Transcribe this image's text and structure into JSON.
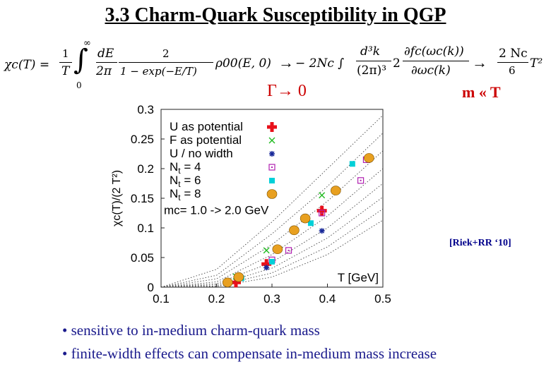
{
  "slide": {
    "title": "3.3 Charm-Quark Susceptibility  in QGP",
    "formula": {
      "lhs": "χc(T) =",
      "frac1_num": "1",
      "frac1_den": "T",
      "int_upper": "∞",
      "int_lower": "0",
      "frac2_num": "dE",
      "frac2_den": "2π",
      "frac3_num": "2",
      "frac3_den": "1 − exp(−E/T)",
      "rho": "ρ00(E, 0)",
      "arrow1": "→",
      "mid": "− 2Nc ∫",
      "frac4_num": "d³k",
      "frac4_den": "(2π)³",
      "two": "2",
      "frac5_num": "∂fc(ωc(k))",
      "frac5_den": "∂ωc(k)",
      "arrow2": "→",
      "frac6_num": "2 Nc",
      "frac6_den": "6",
      "t_pow": "T²"
    },
    "gamma_limit": "Γ→ 0",
    "mass_limit": "m « T",
    "citation": "[Riek+RR ‘10]",
    "bullets": [
      "• sensitive to in-medium charm-quark mass",
      "• finite-width effects can compensate in-medium mass increase"
    ]
  },
  "colors": {
    "red": "#e8101a",
    "green": "#22bb22",
    "blue": "#1a2a9a",
    "magenta": "#b020b0",
    "cyan": "#00d0d8",
    "orange": "#e8a020",
    "accent": "#cc0000",
    "bullet": "#1a1a8c"
  },
  "chart_data": {
    "type": "scatter",
    "xlabel": "T [GeV]",
    "ylabel": "χc(T)/(2 T²)",
    "xlim": [
      0.1,
      0.5
    ],
    "ylim": [
      0,
      0.3
    ],
    "xticks": [
      "0.1",
      "0.2",
      "0.3",
      "0.4",
      "0.5"
    ],
    "yticks": [
      "0",
      "0.05",
      "0.1",
      "0.15",
      "0.2",
      "0.25",
      "0.3"
    ],
    "annotation": "mc= 1.0 -> 2.0 GeV",
    "legend": [
      {
        "label": "U as potential",
        "marker": "plus",
        "color": "#e8101a"
      },
      {
        "label": "F as potential",
        "marker": "x",
        "color": "#22bb22"
      },
      {
        "label": "U / no width",
        "marker": "star",
        "color": "#1a2a9a"
      },
      {
        "label": "Nt = 4",
        "marker": "dotted-square",
        "color": "#b020b0"
      },
      {
        "label": "Nt = 6",
        "marker": "square",
        "color": "#00d0d8"
      },
      {
        "label": "Nt = 8",
        "marker": "circle",
        "color": "#e8a020"
      }
    ],
    "series": [
      {
        "name": "U as potential",
        "x": [
          0.235,
          0.29,
          0.39
        ],
        "y": [
          0.008,
          0.039,
          0.129
        ]
      },
      {
        "name": "F as potential",
        "x": [
          0.235,
          0.29,
          0.39
        ],
        "y": [
          0.018,
          0.062,
          0.155
        ]
      },
      {
        "name": "U / no width",
        "x": [
          0.29,
          0.39
        ],
        "y": [
          0.033,
          0.095
        ]
      },
      {
        "name": "Nt = 4",
        "x": [
          0.3,
          0.33,
          0.39,
          0.46,
          0.47
        ],
        "y": [
          0.046,
          0.062,
          0.125,
          0.18,
          0.215
        ]
      },
      {
        "name": "Nt = 6",
        "x": [
          0.245,
          0.3,
          0.37,
          0.445
        ],
        "y": [
          0.015,
          0.043,
          0.108,
          0.208
        ]
      },
      {
        "name": "Nt = 8",
        "x": [
          0.22,
          0.24,
          0.31,
          0.34,
          0.36,
          0.415,
          0.475
        ],
        "y": [
          0.008,
          0.017,
          0.064,
          0.096,
          0.116,
          0.163,
          0.218
        ]
      }
    ],
    "dotted_curves": [
      {
        "x": [
          0.1,
          0.2,
          0.3,
          0.4,
          0.5
        ],
        "y": [
          0.0,
          0.03,
          0.11,
          0.2,
          0.29
        ]
      },
      {
        "x": [
          0.1,
          0.2,
          0.3,
          0.4,
          0.5
        ],
        "y": [
          0.0,
          0.02,
          0.09,
          0.17,
          0.26
        ]
      },
      {
        "x": [
          0.1,
          0.2,
          0.3,
          0.4,
          0.5
        ],
        "y": [
          0.0,
          0.014,
          0.072,
          0.145,
          0.23
        ]
      },
      {
        "x": [
          0.1,
          0.2,
          0.3,
          0.4,
          0.5
        ],
        "y": [
          0.0,
          0.009,
          0.055,
          0.12,
          0.2
        ]
      },
      {
        "x": [
          0.1,
          0.2,
          0.3,
          0.4,
          0.5
        ],
        "y": [
          0.0,
          0.006,
          0.042,
          0.1,
          0.175
        ]
      },
      {
        "x": [
          0.1,
          0.2,
          0.3,
          0.4,
          0.5
        ],
        "y": [
          0.0,
          0.004,
          0.032,
          0.083,
          0.152
        ]
      },
      {
        "x": [
          0.1,
          0.2,
          0.3,
          0.4,
          0.5
        ],
        "y": [
          0.0,
          0.002,
          0.024,
          0.068,
          0.132
        ]
      },
      {
        "x": [
          0.1,
          0.2,
          0.3,
          0.4,
          0.5
        ],
        "y": [
          0.0,
          0.001,
          0.017,
          0.055,
          0.113
        ]
      }
    ]
  }
}
